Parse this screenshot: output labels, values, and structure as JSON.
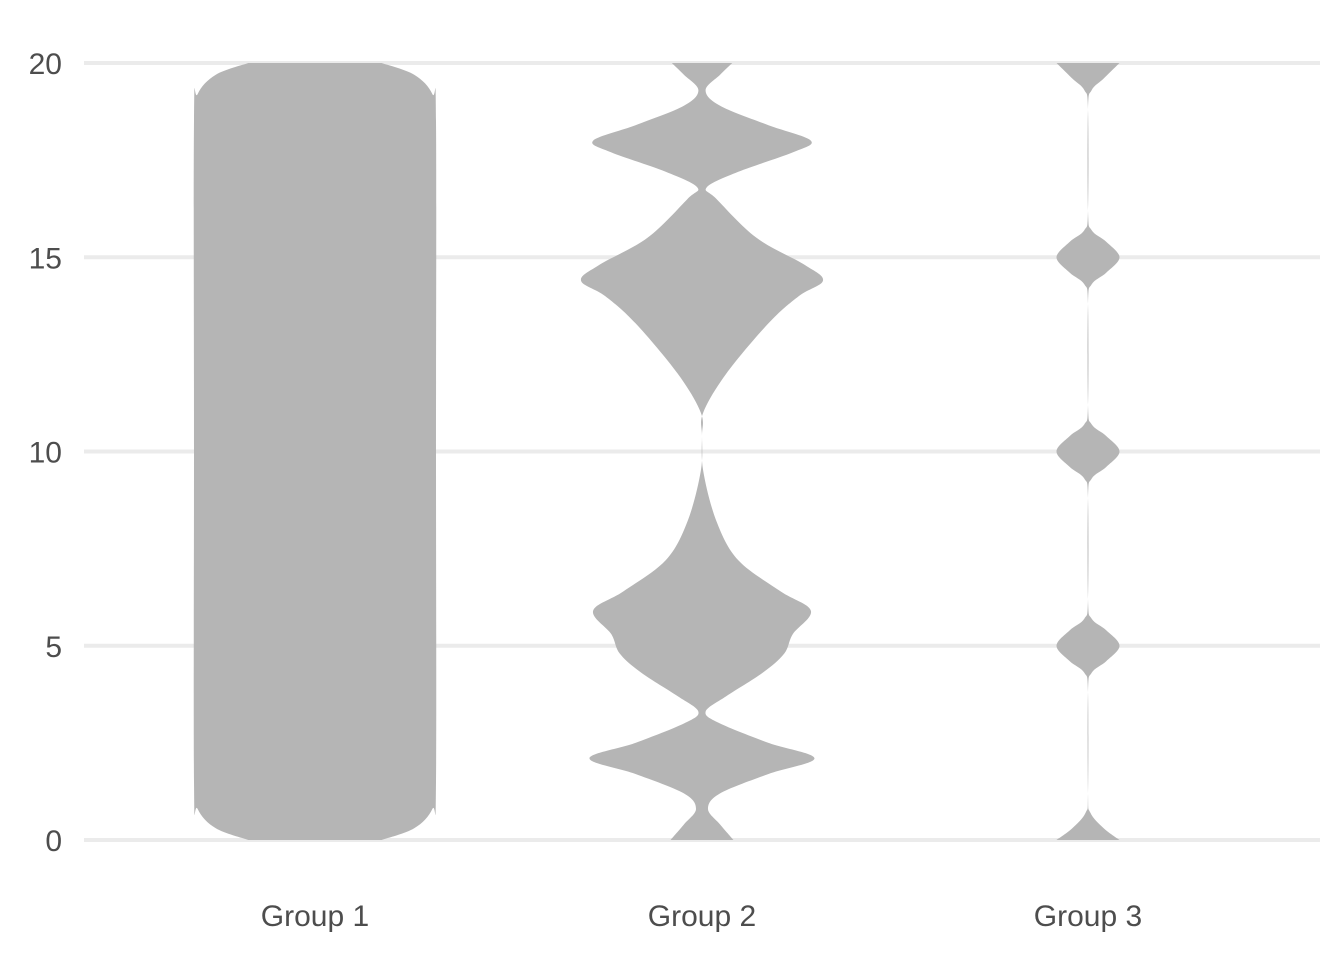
{
  "chart_data": {
    "type": "violin",
    "title": "",
    "xlabel": "",
    "ylabel": "",
    "ylim": [
      0,
      20
    ],
    "y_ticks": [
      0,
      5,
      10,
      15,
      20
    ],
    "grid": "horizontal",
    "legend": "none",
    "colors": {
      "violin_fill": "#b5b5b5",
      "grid": "#ebebeb",
      "text": "#4d4d4d"
    },
    "categories": [
      "Group 1",
      "Group 2",
      "Group 3"
    ],
    "series": [
      {
        "category": "Group 1",
        "density_profile": [
          [
            0,
            0.55
          ],
          [
            0.3,
            0.82
          ],
          [
            0.8,
            0.97
          ],
          [
            1.5,
            1.0
          ],
          [
            10,
            1.0
          ],
          [
            18.5,
            1.0
          ],
          [
            19.2,
            0.97
          ],
          [
            19.7,
            0.82
          ],
          [
            20,
            0.55
          ]
        ]
      },
      {
        "category": "Group 2",
        "density_profile": [
          [
            0,
            0.26
          ],
          [
            0.4,
            0.15
          ],
          [
            0.8,
            0.05
          ],
          [
            1.2,
            0.15
          ],
          [
            1.7,
            0.55
          ],
          [
            2.1,
            0.93
          ],
          [
            2.5,
            0.55
          ],
          [
            3.0,
            0.15
          ],
          [
            3.3,
            0.03
          ],
          [
            3.7,
            0.2
          ],
          [
            4.3,
            0.5
          ],
          [
            4.8,
            0.68
          ],
          [
            5.3,
            0.75
          ],
          [
            5.9,
            0.9
          ],
          [
            6.4,
            0.65
          ],
          [
            7.2,
            0.3
          ],
          [
            8.2,
            0.12
          ],
          [
            9.5,
            0.01
          ],
          [
            10.4,
            0.0
          ],
          [
            11.0,
            0.01
          ],
          [
            12.0,
            0.2
          ],
          [
            13.3,
            0.55
          ],
          [
            14.0,
            0.8
          ],
          [
            14.4,
            1.0
          ],
          [
            14.8,
            0.85
          ],
          [
            15.5,
            0.45
          ],
          [
            16.5,
            0.12
          ],
          [
            16.8,
            0.04
          ],
          [
            17.2,
            0.3
          ],
          [
            17.7,
            0.75
          ],
          [
            18.0,
            0.9
          ],
          [
            18.4,
            0.55
          ],
          [
            18.9,
            0.15
          ],
          [
            19.3,
            0.03
          ],
          [
            19.7,
            0.15
          ],
          [
            20,
            0.25
          ]
        ]
      },
      {
        "category": "Group 3",
        "density_profile": [
          [
            0,
            0.26
          ],
          [
            0.3,
            0.13
          ],
          [
            0.7,
            0.02
          ],
          [
            1.2,
            0.0
          ],
          [
            3.8,
            0.0
          ],
          [
            4.3,
            0.03
          ],
          [
            4.6,
            0.15
          ],
          [
            5.0,
            0.26
          ],
          [
            5.4,
            0.15
          ],
          [
            5.7,
            0.03
          ],
          [
            6.2,
            0.0
          ],
          [
            8.8,
            0.0
          ],
          [
            9.3,
            0.03
          ],
          [
            9.6,
            0.15
          ],
          [
            10.0,
            0.26
          ],
          [
            10.4,
            0.15
          ],
          [
            10.7,
            0.03
          ],
          [
            11.2,
            0.0
          ],
          [
            13.8,
            0.0
          ],
          [
            14.3,
            0.03
          ],
          [
            14.6,
            0.15
          ],
          [
            15.0,
            0.26
          ],
          [
            15.4,
            0.15
          ],
          [
            15.7,
            0.03
          ],
          [
            16.2,
            0.0
          ],
          [
            18.8,
            0.0
          ],
          [
            19.3,
            0.03
          ],
          [
            19.6,
            0.13
          ],
          [
            20,
            0.26
          ]
        ]
      }
    ]
  }
}
